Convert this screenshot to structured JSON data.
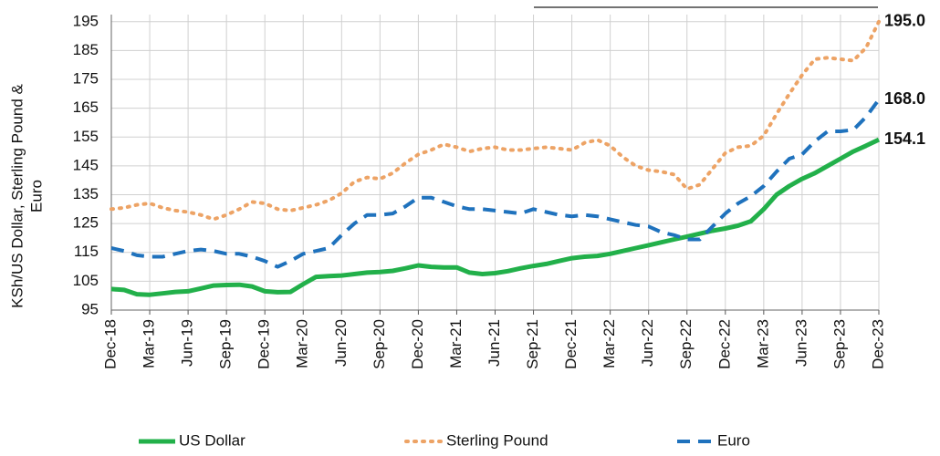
{
  "chart_data": {
    "type": "line",
    "ylabel": [
      "KSh/US Dollar, Sterling Pound &",
      "Euro"
    ],
    "categories": [
      "Dec-18",
      null,
      null,
      "Mar-19",
      null,
      null,
      "Jun-19",
      null,
      null,
      "Sep-19",
      null,
      null,
      "Dec-19",
      null,
      null,
      "Mar-20",
      null,
      null,
      "Jun-20",
      null,
      null,
      "Sep-20",
      null,
      null,
      "Dec-20",
      null,
      null,
      "Mar-21",
      null,
      null,
      "Jun-21",
      null,
      null,
      "Sep-21",
      null,
      null,
      "Dec-21",
      null,
      null,
      "Mar-22",
      null,
      null,
      "Jun-22",
      null,
      null,
      "Sep-22",
      null,
      null,
      "Dec-22",
      null,
      null,
      "Mar-23",
      null,
      null,
      "Jun-23",
      null,
      null,
      "Sep-23",
      null,
      null,
      "Dec-23"
    ],
    "ylim": [
      95,
      200
    ],
    "yticks": [
      95,
      105,
      115,
      125,
      135,
      145,
      155,
      165,
      175,
      185,
      195
    ],
    "grid": true,
    "series": [
      {
        "name": "US Dollar",
        "color": "#22b04a",
        "label_color": "#2aa84a",
        "dash": "solid",
        "values": [
          102.3,
          102,
          100.5,
          100.3,
          100.8,
          101.3,
          101.5,
          102.5,
          103.5,
          103.7,
          103.8,
          103.2,
          101.5,
          101.2,
          101.3,
          104,
          106.5,
          106.8,
          107,
          107.5,
          108,
          108.2,
          108.6,
          109.5,
          110.5,
          110,
          109.8,
          109.8,
          108,
          107.5,
          107.8,
          108.5,
          109.5,
          110.3,
          111,
          112,
          113,
          113.5,
          113.8,
          114.5,
          115.5,
          116.5,
          117.5,
          118.5,
          119.5,
          120.5,
          121.5,
          122.5,
          123.3,
          124.3,
          125.8,
          130,
          135,
          138,
          140.5,
          142.5,
          145,
          147.5,
          150,
          152,
          154.1
        ],
        "value_labels": [
          null,
          null,
          null,
          null,
          null,
          null,
          null,
          null,
          null,
          null,
          null,
          null,
          null,
          null,
          null,
          null,
          null,
          null,
          null,
          null,
          null,
          null,
          null,
          null,
          null,
          null,
          null,
          null,
          null,
          null,
          null,
          null,
          null,
          null,
          null,
          null,
          null,
          null,
          null,
          null,
          null,
          null,
          null,
          null,
          null,
          null,
          null,
          null,
          null,
          null,
          null,
          null,
          null,
          null,
          null,
          null,
          null,
          null,
          null,
          null,
          "154.1"
        ]
      },
      {
        "name": "Sterling Pound",
        "color": "#eda365",
        "label_color": "#a36a2c",
        "dash": "dotted",
        "values": [
          130,
          130.5,
          131.5,
          132,
          130.5,
          129.5,
          129,
          128,
          126.5,
          128,
          130,
          132.5,
          132,
          130,
          129.5,
          130.5,
          131.5,
          133,
          135.5,
          139.5,
          141,
          140.5,
          142.5,
          146,
          149,
          150.5,
          152.5,
          151.5,
          150,
          151,
          151.5,
          150.5,
          150.5,
          151,
          151.5,
          151,
          150.5,
          153,
          154,
          152,
          148,
          145,
          143.5,
          143,
          142,
          137,
          138.5,
          144,
          149.5,
          151.5,
          152,
          155.5,
          163,
          170,
          176.5,
          182,
          182.5,
          182,
          181.5,
          186,
          195
        ],
        "value_labels": [
          null,
          null,
          null,
          null,
          null,
          null,
          null,
          null,
          null,
          null,
          null,
          null,
          null,
          null,
          null,
          null,
          null,
          null,
          null,
          null,
          null,
          null,
          null,
          null,
          null,
          null,
          null,
          null,
          null,
          null,
          null,
          null,
          null,
          null,
          null,
          null,
          null,
          null,
          null,
          null,
          null,
          null,
          null,
          null,
          null,
          null,
          null,
          null,
          null,
          null,
          null,
          null,
          null,
          null,
          null,
          null,
          null,
          null,
          null,
          null,
          "195.0"
        ]
      },
      {
        "name": "Euro",
        "color": "#1f72bd",
        "label_color": "#1d7fae",
        "dash": "dashed",
        "values": [
          116.5,
          115.5,
          114,
          113.5,
          113.5,
          114.5,
          115.5,
          116,
          115.5,
          114.5,
          114.5,
          113.5,
          112,
          110,
          112,
          114.5,
          115.5,
          116.5,
          121,
          125,
          128,
          128,
          128.5,
          131,
          134,
          134,
          132.5,
          131,
          130,
          130,
          129.5,
          129,
          128.5,
          130,
          129,
          128,
          127.5,
          128,
          127.5,
          126.5,
          125.5,
          124.5,
          124,
          122,
          121,
          119.5,
          119.5,
          124,
          128.5,
          132,
          134.5,
          138,
          143,
          147.5,
          149,
          153.5,
          157,
          157,
          157.5,
          162,
          168
        ],
        "value_labels": [
          null,
          null,
          null,
          null,
          null,
          null,
          null,
          null,
          null,
          null,
          null,
          null,
          null,
          null,
          null,
          null,
          null,
          null,
          null,
          null,
          null,
          null,
          null,
          null,
          null,
          null,
          null,
          null,
          null,
          null,
          null,
          null,
          null,
          null,
          null,
          null,
          null,
          null,
          null,
          null,
          null,
          null,
          null,
          null,
          null,
          null,
          null,
          null,
          null,
          null,
          null,
          null,
          null,
          null,
          null,
          null,
          null,
          null,
          null,
          null,
          "168.0"
        ]
      }
    ]
  }
}
